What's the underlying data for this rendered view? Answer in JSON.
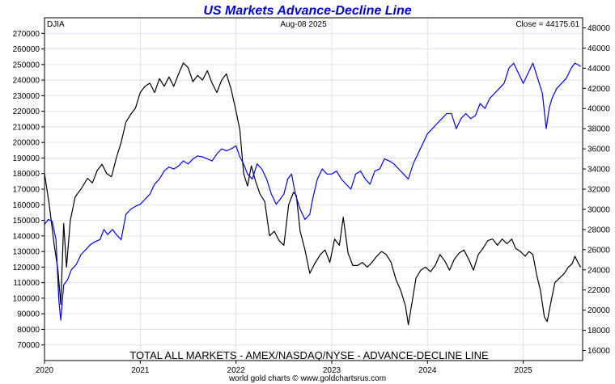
{
  "chart_data": {
    "type": "line",
    "title": "US Markets Advance-Decline Line",
    "ticker": "DJIA",
    "date_label": "Aug-08  2025",
    "close_label": "Close = 44175.61",
    "bottom_label": "TOTAL ALL MARKETS - AMEX/NASDAQ/NYSE - ADVANCE-DECLINE LINE",
    "footer": "world gold charts © www.goldchartsrus.com",
    "x_ticks": [
      {
        "label": "2020",
        "t": 2020.0
      },
      {
        "label": "2021",
        "t": 2021.0
      },
      {
        "label": "2022",
        "t": 2022.0
      },
      {
        "label": "2023",
        "t": 2023.0
      },
      {
        "label": "2024",
        "t": 2024.0
      },
      {
        "label": "2025",
        "t": 2025.0
      }
    ],
    "xlim": [
      2020.0,
      2025.62
    ],
    "left_axis": {
      "ylim": [
        60000,
        280000
      ],
      "ticks": [
        {
          "v": 70000,
          "label": "70000"
        },
        {
          "v": 80000,
          "label": "80000"
        },
        {
          "v": 90000,
          "label": "90000"
        },
        {
          "v": 100000,
          "label": "100000"
        },
        {
          "v": 110000,
          "label": "110000"
        },
        {
          "v": 120000,
          "label": "120000"
        },
        {
          "v": 130000,
          "label": "130000"
        },
        {
          "v": 140000,
          "label": "140000"
        },
        {
          "v": 150000,
          "label": "150000"
        },
        {
          "v": 160000,
          "label": "160000"
        },
        {
          "v": 170000,
          "label": "170000"
        },
        {
          "v": 180000,
          "label": "180000"
        },
        {
          "v": 190000,
          "label": "190000"
        },
        {
          "v": 200000,
          "label": "200000"
        },
        {
          "v": 210000,
          "label": "210000"
        },
        {
          "v": 220000,
          "label": "220000"
        },
        {
          "v": 230000,
          "label": "230000"
        },
        {
          "v": 240000,
          "label": "240000"
        },
        {
          "v": 250000,
          "label": "250000"
        },
        {
          "v": 260000,
          "label": "260000"
        },
        {
          "v": 270000,
          "label": "270000"
        }
      ]
    },
    "right_axis": {
      "ylim": [
        15000,
        49000
      ],
      "ticks": [
        {
          "v": 16000,
          "label": "16000"
        },
        {
          "v": 18000,
          "label": "18000"
        },
        {
          "v": 20000,
          "label": "20000"
        },
        {
          "v": 22000,
          "label": "22000"
        },
        {
          "v": 24000,
          "label": "24000"
        },
        {
          "v": 26000,
          "label": "26000"
        },
        {
          "v": 28000,
          "label": "28000"
        },
        {
          "v": 30000,
          "label": "30000"
        },
        {
          "v": 32000,
          "label": "32000"
        },
        {
          "v": 34000,
          "label": "34000"
        },
        {
          "v": 36000,
          "label": "36000"
        },
        {
          "v": 38000,
          "label": "38000"
        },
        {
          "v": 40000,
          "label": "40000"
        },
        {
          "v": 42000,
          "label": "42000"
        },
        {
          "v": 44000,
          "label": "44000"
        },
        {
          "v": 46000,
          "label": "46000"
        },
        {
          "v": 48000,
          "label": "48000"
        }
      ]
    },
    "series": [
      {
        "name": "Advance-Decline Line",
        "axis": "left",
        "color": "#000000",
        "points": [
          [
            2020.0,
            180000
          ],
          [
            2020.05,
            160000
          ],
          [
            2020.1,
            135000
          ],
          [
            2020.14,
            118000
          ],
          [
            2020.17,
            96000
          ],
          [
            2020.2,
            148000
          ],
          [
            2020.23,
            120000
          ],
          [
            2020.27,
            150000
          ],
          [
            2020.32,
            165000
          ],
          [
            2020.38,
            170000
          ],
          [
            2020.45,
            177000
          ],
          [
            2020.5,
            174000
          ],
          [
            2020.55,
            182000
          ],
          [
            2020.6,
            186000
          ],
          [
            2020.65,
            180000
          ],
          [
            2020.7,
            178000
          ],
          [
            2020.75,
            190000
          ],
          [
            2020.8,
            200000
          ],
          [
            2020.85,
            213000
          ],
          [
            2020.9,
            218000
          ],
          [
            2020.95,
            222000
          ],
          [
            2021.0,
            232000
          ],
          [
            2021.05,
            236000
          ],
          [
            2021.1,
            238000
          ],
          [
            2021.15,
            232000
          ],
          [
            2021.2,
            241000
          ],
          [
            2021.25,
            236000
          ],
          [
            2021.3,
            242000
          ],
          [
            2021.35,
            236000
          ],
          [
            2021.4,
            244000
          ],
          [
            2021.45,
            251000
          ],
          [
            2021.5,
            248000
          ],
          [
            2021.55,
            239000
          ],
          [
            2021.6,
            243000
          ],
          [
            2021.65,
            240000
          ],
          [
            2021.7,
            246000
          ],
          [
            2021.75,
            238000
          ],
          [
            2021.8,
            232000
          ],
          [
            2021.85,
            240000
          ],
          [
            2021.9,
            244000
          ],
          [
            2021.95,
            234000
          ],
          [
            2022.0,
            220000
          ],
          [
            2022.04,
            208000
          ],
          [
            2022.08,
            180000
          ],
          [
            2022.12,
            172000
          ],
          [
            2022.16,
            185000
          ],
          [
            2022.2,
            176000
          ],
          [
            2022.25,
            167000
          ],
          [
            2022.3,
            162000
          ],
          [
            2022.35,
            140000
          ],
          [
            2022.4,
            143000
          ],
          [
            2022.45,
            137000
          ],
          [
            2022.5,
            134000
          ],
          [
            2022.55,
            160000
          ],
          [
            2022.6,
            168000
          ],
          [
            2022.63,
            166000
          ],
          [
            2022.67,
            143000
          ],
          [
            2022.72,
            131000
          ],
          [
            2022.77,
            116000
          ],
          [
            2022.82,
            122000
          ],
          [
            2022.88,
            128000
          ],
          [
            2022.93,
            131000
          ],
          [
            2022.98,
            123000
          ],
          [
            2023.03,
            138000
          ],
          [
            2023.08,
            134000
          ],
          [
            2023.12,
            152000
          ],
          [
            2023.17,
            129000
          ],
          [
            2023.22,
            121000
          ],
          [
            2023.27,
            121000
          ],
          [
            2023.32,
            123000
          ],
          [
            2023.37,
            120000
          ],
          [
            2023.42,
            123000
          ],
          [
            2023.47,
            127000
          ],
          [
            2023.52,
            130000
          ],
          [
            2023.57,
            128000
          ],
          [
            2023.62,
            123000
          ],
          [
            2023.67,
            112000
          ],
          [
            2023.72,
            105000
          ],
          [
            2023.77,
            95000
          ],
          [
            2023.8,
            83000
          ],
          [
            2023.84,
            98000
          ],
          [
            2023.88,
            113000
          ],
          [
            2023.93,
            118000
          ],
          [
            2023.98,
            120000
          ],
          [
            2024.03,
            117000
          ],
          [
            2024.08,
            121000
          ],
          [
            2024.13,
            128000
          ],
          [
            2024.18,
            124000
          ],
          [
            2024.23,
            118000
          ],
          [
            2024.28,
            125000
          ],
          [
            2024.33,
            129000
          ],
          [
            2024.38,
            131000
          ],
          [
            2024.43,
            125000
          ],
          [
            2024.48,
            118000
          ],
          [
            2024.53,
            128000
          ],
          [
            2024.58,
            132000
          ],
          [
            2024.63,
            137000
          ],
          [
            2024.68,
            138000
          ],
          [
            2024.73,
            134000
          ],
          [
            2024.78,
            138000
          ],
          [
            2024.83,
            135000
          ],
          [
            2024.88,
            138000
          ],
          [
            2024.92,
            132000
          ],
          [
            2024.97,
            130000
          ],
          [
            2025.02,
            127000
          ],
          [
            2025.06,
            130000
          ],
          [
            2025.1,
            128000
          ],
          [
            2025.14,
            115000
          ],
          [
            2025.18,
            105000
          ],
          [
            2025.22,
            88000
          ],
          [
            2025.25,
            85000
          ],
          [
            2025.29,
            98000
          ],
          [
            2025.33,
            110000
          ],
          [
            2025.38,
            113000
          ],
          [
            2025.43,
            116000
          ],
          [
            2025.47,
            120000
          ],
          [
            2025.51,
            122000
          ],
          [
            2025.54,
            127000
          ],
          [
            2025.57,
            123000
          ],
          [
            2025.6,
            120000
          ]
        ]
      },
      {
        "name": "DJIA",
        "axis": "right",
        "color": "#0000ee",
        "points": [
          [
            2020.0,
            28500
          ],
          [
            2020.04,
            29000
          ],
          [
            2020.08,
            28800
          ],
          [
            2020.12,
            27000
          ],
          [
            2020.15,
            21000
          ],
          [
            2020.17,
            19000
          ],
          [
            2020.2,
            22500
          ],
          [
            2020.24,
            23000
          ],
          [
            2020.28,
            24000
          ],
          [
            2020.33,
            24500
          ],
          [
            2020.38,
            25500
          ],
          [
            2020.43,
            26000
          ],
          [
            2020.48,
            26500
          ],
          [
            2020.53,
            26800
          ],
          [
            2020.58,
            27000
          ],
          [
            2020.62,
            28000
          ],
          [
            2020.66,
            27500
          ],
          [
            2020.71,
            28000
          ],
          [
            2020.75,
            27500
          ],
          [
            2020.8,
            27000
          ],
          [
            2020.85,
            29500
          ],
          [
            2020.9,
            30000
          ],
          [
            2020.95,
            30300
          ],
          [
            2021.0,
            30500
          ],
          [
            2021.05,
            31000
          ],
          [
            2021.1,
            31500
          ],
          [
            2021.15,
            32500
          ],
          [
            2021.2,
            33000
          ],
          [
            2021.25,
            33800
          ],
          [
            2021.3,
            34200
          ],
          [
            2021.35,
            34000
          ],
          [
            2021.4,
            34300
          ],
          [
            2021.45,
            34800
          ],
          [
            2021.5,
            34500
          ],
          [
            2021.55,
            35000
          ],
          [
            2021.6,
            35300
          ],
          [
            2021.65,
            35200
          ],
          [
            2021.7,
            35000
          ],
          [
            2021.75,
            34800
          ],
          [
            2021.8,
            35500
          ],
          [
            2021.85,
            36000
          ],
          [
            2021.9,
            35800
          ],
          [
            2021.95,
            36000
          ],
          [
            2022.0,
            36300
          ],
          [
            2022.04,
            35200
          ],
          [
            2022.08,
            34500
          ],
          [
            2022.12,
            33500
          ],
          [
            2022.17,
            33000
          ],
          [
            2022.22,
            34500
          ],
          [
            2022.27,
            34000
          ],
          [
            2022.32,
            33000
          ],
          [
            2022.37,
            31500
          ],
          [
            2022.42,
            30500
          ],
          [
            2022.46,
            31000
          ],
          [
            2022.5,
            31500
          ],
          [
            2022.54,
            33000
          ],
          [
            2022.58,
            33500
          ],
          [
            2022.62,
            31500
          ],
          [
            2022.67,
            30000
          ],
          [
            2022.72,
            29000
          ],
          [
            2022.77,
            29500
          ],
          [
            2022.8,
            31000
          ],
          [
            2022.85,
            33000
          ],
          [
            2022.9,
            34000
          ],
          [
            2022.95,
            33500
          ],
          [
            2023.0,
            33500
          ],
          [
            2023.05,
            33800
          ],
          [
            2023.1,
            33000
          ],
          [
            2023.15,
            32500
          ],
          [
            2023.2,
            32000
          ],
          [
            2023.25,
            33500
          ],
          [
            2023.3,
            33800
          ],
          [
            2023.35,
            33000
          ],
          [
            2023.4,
            32500
          ],
          [
            2023.45,
            33800
          ],
          [
            2023.5,
            34000
          ],
          [
            2023.55,
            35000
          ],
          [
            2023.6,
            34800
          ],
          [
            2023.65,
            34500
          ],
          [
            2023.7,
            34000
          ],
          [
            2023.75,
            33500
          ],
          [
            2023.8,
            33000
          ],
          [
            2023.85,
            34500
          ],
          [
            2023.9,
            35500
          ],
          [
            2023.95,
            36500
          ],
          [
            2024.0,
            37500
          ],
          [
            2024.05,
            38000
          ],
          [
            2024.1,
            38500
          ],
          [
            2024.15,
            39000
          ],
          [
            2024.2,
            39500
          ],
          [
            2024.25,
            39500
          ],
          [
            2024.3,
            38000
          ],
          [
            2024.35,
            39000
          ],
          [
            2024.4,
            39500
          ],
          [
            2024.45,
            39000
          ],
          [
            2024.5,
            39300
          ],
          [
            2024.55,
            40500
          ],
          [
            2024.6,
            40000
          ],
          [
            2024.65,
            41000
          ],
          [
            2024.7,
            41500
          ],
          [
            2024.75,
            42000
          ],
          [
            2024.8,
            42500
          ],
          [
            2024.85,
            44000
          ],
          [
            2024.9,
            44500
          ],
          [
            2024.95,
            43500
          ],
          [
            2025.0,
            42500
          ],
          [
            2025.05,
            43500
          ],
          [
            2025.1,
            44500
          ],
          [
            2025.15,
            43000
          ],
          [
            2025.2,
            41500
          ],
          [
            2025.24,
            38000
          ],
          [
            2025.27,
            40000
          ],
          [
            2025.3,
            41000
          ],
          [
            2025.35,
            42000
          ],
          [
            2025.4,
            42500
          ],
          [
            2025.45,
            43000
          ],
          [
            2025.5,
            44000
          ],
          [
            2025.54,
            44500
          ],
          [
            2025.58,
            44300
          ],
          [
            2025.6,
            44175
          ]
        ]
      }
    ]
  }
}
